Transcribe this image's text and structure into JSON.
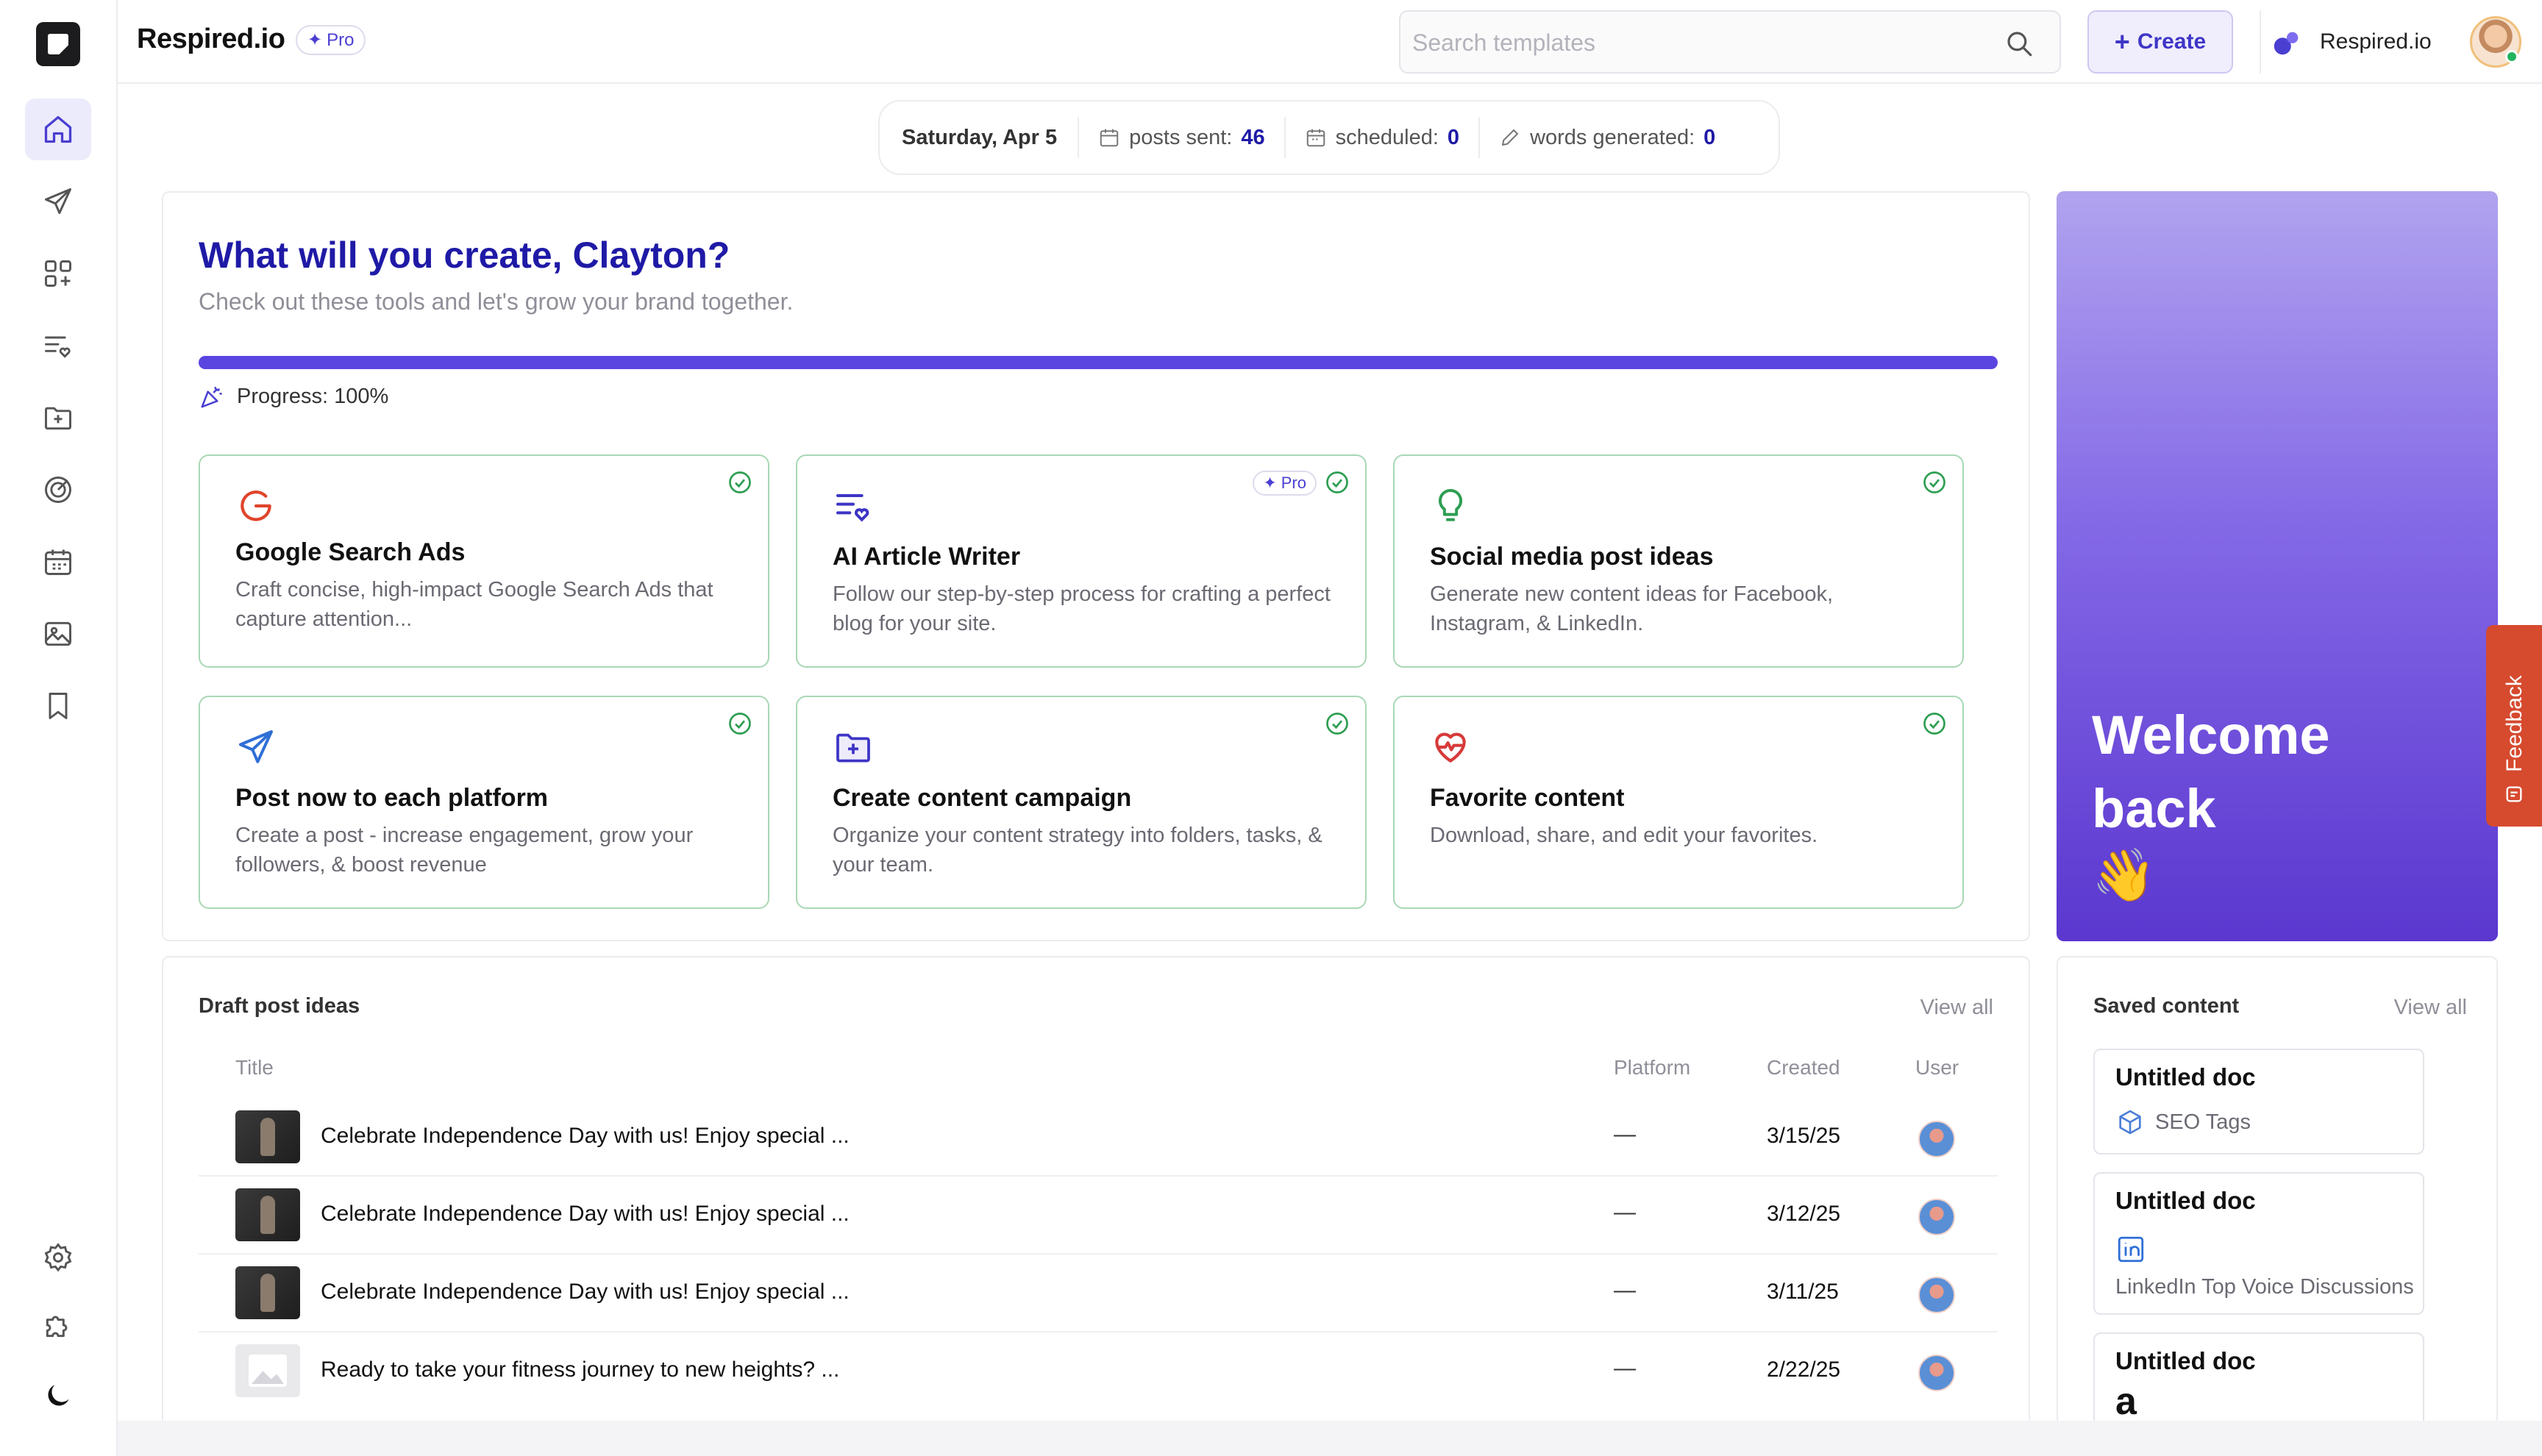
{
  "app": {
    "brand": "Respired.io",
    "pro_label": "Pro"
  },
  "header": {
    "search_placeholder": "Search templates",
    "create_label": "Create",
    "workspace_label": "Respired.io"
  },
  "sidebar": {
    "items": [
      {
        "name": "home",
        "icon": "home-icon",
        "active": true
      },
      {
        "name": "send",
        "icon": "send-icon"
      },
      {
        "name": "apps",
        "icon": "apps-add-icon"
      },
      {
        "name": "favorites-list",
        "icon": "list-heart-icon"
      },
      {
        "name": "folder",
        "icon": "folder-plus-icon"
      },
      {
        "name": "goals",
        "icon": "target-icon"
      },
      {
        "name": "calendar",
        "icon": "calendar-icon"
      },
      {
        "name": "images",
        "icon": "image-icon"
      },
      {
        "name": "bookmarks",
        "icon": "bookmark-icon"
      }
    ],
    "bottom": [
      {
        "name": "settings",
        "icon": "gear-icon"
      },
      {
        "name": "integrations",
        "icon": "puzzle-icon"
      },
      {
        "name": "theme",
        "icon": "moon-icon"
      }
    ]
  },
  "stats": {
    "date": "Saturday, Apr 5",
    "posts_sent_label": "posts sent:",
    "posts_sent": "46",
    "scheduled_label": "scheduled:",
    "scheduled": "0",
    "words_label": "words generated:",
    "words": "0"
  },
  "hero": {
    "title": "What will you create, Clayton?",
    "subtitle": "Check out these tools and let's grow your brand together.",
    "progress_label": "Progress: 100%",
    "progress_value": 1.0
  },
  "tools": [
    {
      "name": "Google Search Ads",
      "desc": "Craft concise, high-impact Google Search Ads that capture attention...",
      "icon": "google-icon",
      "done": true,
      "pro": false
    },
    {
      "name": "AI Article Writer",
      "desc": "Follow our step-by-step process for crafting a perfect blog for your site.",
      "icon": "list-heart-icon",
      "done": true,
      "pro": true
    },
    {
      "name": "Social media post ideas",
      "desc": "Generate new content ideas for Facebook, Instagram, & LinkedIn.",
      "icon": "lightbulb-icon",
      "done": true,
      "pro": false
    },
    {
      "name": "Post now to each platform",
      "desc": "Create a post -  increase engagement, grow your followers, & boost revenue",
      "icon": "send-icon",
      "done": true,
      "pro": false
    },
    {
      "name": "Create content campaign",
      "desc": "Organize your content strategy into folders, tasks, & your team.",
      "icon": "folder-plus-icon",
      "done": true,
      "pro": false
    },
    {
      "name": "Favorite content",
      "desc": "Download, share, and edit your favorites.",
      "icon": "heart-pulse-icon",
      "done": true,
      "pro": false
    }
  ],
  "welcome": {
    "text": "Welcome back",
    "emoji": "👋"
  },
  "feedback": {
    "label": "Feedback"
  },
  "drafts": {
    "title": "Draft post ideas",
    "view_all": "View all",
    "columns": {
      "title": "Title",
      "platform": "Platform",
      "created": "Created",
      "user": "User"
    },
    "rows": [
      {
        "title": "Celebrate Independence Day with us! Enjoy special ...",
        "platform": "—",
        "created": "3/15/25",
        "thumb": "photo"
      },
      {
        "title": "Celebrate Independence Day with us! Enjoy special ...",
        "platform": "—",
        "created": "3/12/25",
        "thumb": "photo"
      },
      {
        "title": "Celebrate Independence Day with us! Enjoy special ...",
        "platform": "—",
        "created": "3/11/25",
        "thumb": "photo"
      },
      {
        "title": "Ready to take your fitness journey to new heights? ...",
        "platform": "—",
        "created": "2/22/25",
        "thumb": "placeholder"
      }
    ]
  },
  "saved": {
    "title": "Saved content",
    "view_all": "View all",
    "items": [
      {
        "name": "Untitled doc",
        "sub": "SEO Tags",
        "icon": "cube-icon"
      },
      {
        "name": "Untitled doc",
        "sub": "LinkedIn Top Voice Discussions",
        "icon": "linkedin-icon"
      },
      {
        "name": "Untitled doc",
        "sub": "",
        "icon": "amazon-icon"
      }
    ]
  },
  "colors": {
    "accent": "#5a45e0",
    "title": "#1f1aa6",
    "done_border": "#a8d8b5",
    "check": "#2e9e52",
    "feedback": "#d64a2e"
  }
}
